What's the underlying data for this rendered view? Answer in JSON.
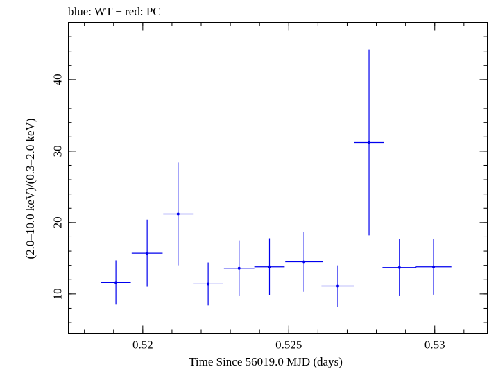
{
  "chart_data": {
    "type": "scatter",
    "title": "blue: WT − red: PC",
    "xlabel": "Time Since 56019.0 MJD (days)",
    "ylabel": "(2.0–10.0 keV)/(0.3–2.0 keV)",
    "xlim": [
      0.51745,
      0.5318
    ],
    "ylim": [
      4.5,
      48
    ],
    "x_major_ticks": [
      0.52,
      0.525,
      0.53
    ],
    "x_tick_labels": [
      "0.52",
      "0.525",
      "0.53"
    ],
    "x_minor_step": 0.001,
    "y_major_ticks": [
      10,
      20,
      30,
      40
    ],
    "y_tick_labels": [
      "10",
      "20",
      "30",
      "40"
    ],
    "y_minor_step": 2,
    "series": [
      {
        "name": "WT",
        "color": "#0000ee",
        "points": [
          {
            "x": 0.51908,
            "xerr": 0.00051,
            "y": 11.6,
            "yerr": 3.1
          },
          {
            "x": 0.52015,
            "xerr": 0.00053,
            "y": 15.7,
            "yerr": 4.7
          },
          {
            "x": 0.52121,
            "xerr": 0.00051,
            "y": 21.2,
            "yerr": 7.2
          },
          {
            "x": 0.52224,
            "xerr": 0.00052,
            "y": 11.4,
            "yerr": 3.0
          },
          {
            "x": 0.5233,
            "xerr": 0.00052,
            "y": 13.6,
            "yerr": 3.9
          },
          {
            "x": 0.52434,
            "xerr": 0.00052,
            "y": 13.8,
            "yerr": 4.0
          },
          {
            "x": 0.52552,
            "xerr": 0.00064,
            "y": 14.5,
            "yerr": 4.2
          },
          {
            "x": 0.52668,
            "xerr": 0.00056,
            "y": 11.1,
            "yerr": 2.9
          },
          {
            "x": 0.52775,
            "xerr": 0.00051,
            "y": 31.2,
            "yerr": 13.0
          },
          {
            "x": 0.52879,
            "xerr": 0.00058,
            "y": 13.7,
            "yerr": 4.0
          },
          {
            "x": 0.52996,
            "xerr": 0.00061,
            "y": 13.8,
            "yerr": 3.9
          }
        ]
      }
    ]
  }
}
